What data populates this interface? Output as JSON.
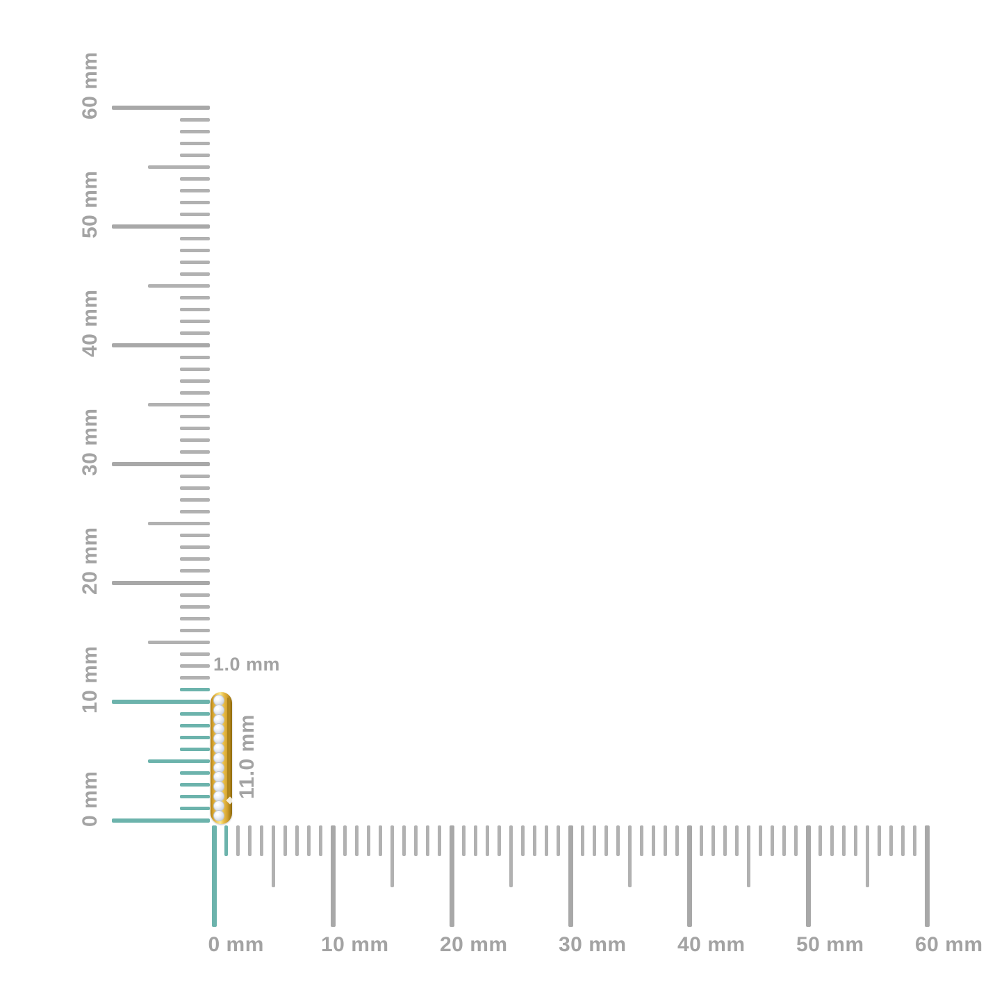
{
  "diagram": {
    "title": "jewelry-size-measurement-diagram",
    "unit": "mm"
  },
  "rulers": {
    "vertical": {
      "min_mm": 0,
      "max_mm": 60,
      "minor_every_mm": 1,
      "half_every_mm": 5,
      "major_every_mm": 10,
      "highlight_to_mm": 11,
      "labels": [
        {
          "mm": 0,
          "text": "0 mm"
        },
        {
          "mm": 10,
          "text": "10 mm"
        },
        {
          "mm": 20,
          "text": "20 mm"
        },
        {
          "mm": 30,
          "text": "30 mm"
        },
        {
          "mm": 40,
          "text": "40 mm"
        },
        {
          "mm": 50,
          "text": "50 mm"
        },
        {
          "mm": 60,
          "text": "60 mm"
        }
      ]
    },
    "horizontal": {
      "min_mm": 0,
      "max_mm": 60,
      "minor_every_mm": 1,
      "half_every_mm": 5,
      "major_every_mm": 10,
      "highlight_to_mm": 1,
      "labels": [
        {
          "mm": 0,
          "text": "0 mm"
        },
        {
          "mm": 10,
          "text": "10 mm"
        },
        {
          "mm": 20,
          "text": "20 mm"
        },
        {
          "mm": 30,
          "text": "30 mm"
        },
        {
          "mm": 40,
          "text": "40 mm"
        },
        {
          "mm": 50,
          "text": "50 mm"
        },
        {
          "mm": 60,
          "text": "60 mm"
        }
      ]
    }
  },
  "measurements": {
    "width_label": "1.0 mm",
    "height_label": "11.0 mm",
    "width_mm": 1.0,
    "height_mm": 11.0
  },
  "item": {
    "type": "gold-diamond-bar",
    "stone_count": 13
  },
  "colors": {
    "tick_gray": "#b1b1b1",
    "tick_gray_major": "#a8a8a8",
    "tick_teal": "#6cb3ac",
    "label_gray": "#a3a3a3",
    "background": "#ffffff"
  }
}
